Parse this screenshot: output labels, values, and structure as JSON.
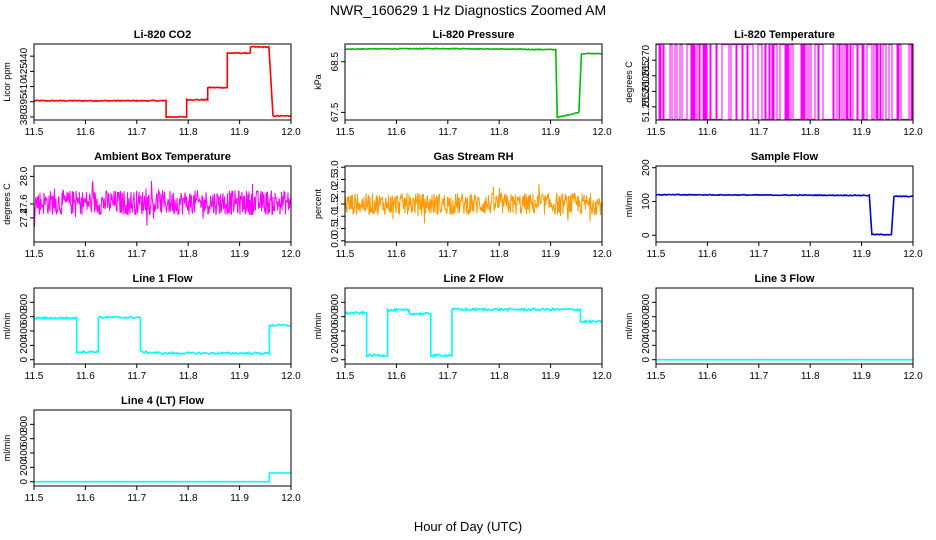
{
  "figure": {
    "title": "NWR_160629  1 Hz Diagnostics Zoomed AM",
    "xlabel": "Hour of Day (UTC)"
  },
  "chart_data": [
    {
      "id": "co2",
      "type": "line",
      "title": "Li-820 CO2",
      "ylabel": "Licor ppm",
      "color": "#ff0000",
      "xlim": [
        11.5,
        12.0
      ],
      "ylim": [
        377,
        452
      ],
      "xticks": [
        "11.5",
        "11.6",
        "11.7",
        "11.8",
        "11.9",
        "12.0"
      ],
      "yticks": [
        {
          "v": 380,
          "label": "380"
        },
        {
          "v": 395,
          "label": "395"
        },
        {
          "v": 410,
          "label": "410"
        },
        {
          "v": 425,
          "label": "425"
        },
        {
          "v": 440,
          "label": "440"
        }
      ],
      "series": [
        {
          "noise": 0.5,
          "points": [
            [
              11.5,
              396
            ],
            [
              11.757,
              396
            ],
            [
              11.757,
              380
            ],
            [
              11.797,
              380
            ],
            [
              11.797,
              397
            ],
            [
              11.838,
              397
            ],
            [
              11.838,
              409
            ],
            [
              11.876,
              409
            ],
            [
              11.876,
              443
            ],
            [
              11.921,
              443
            ],
            [
              11.921,
              449
            ],
            [
              11.957,
              449
            ],
            [
              11.965,
              381
            ],
            [
              12.0,
              381
            ]
          ]
        }
      ]
    },
    {
      "id": "pressure",
      "type": "line",
      "title": "Li-820 Pressure",
      "ylabel": "kPa",
      "color": "#00bb00",
      "xlim": [
        11.5,
        12.0
      ],
      "ylim": [
        67.35,
        68.85
      ],
      "xticks": [
        "11.5",
        "11.6",
        "11.7",
        "11.8",
        "11.9",
        "12.0"
      ],
      "yticks": [
        {
          "v": 67.5,
          "label": "67.5"
        },
        {
          "v": 68.5,
          "label": "68.5"
        }
      ],
      "series": [
        {
          "noise": 0.008,
          "points": [
            [
              11.5,
              68.75
            ],
            [
              11.7,
              68.76
            ],
            [
              11.9,
              68.74
            ],
            [
              11.91,
              68.74
            ],
            [
              11.913,
              67.4
            ],
            [
              11.955,
              67.5
            ],
            [
              11.96,
              68.66
            ],
            [
              12.0,
              68.66
            ]
          ]
        }
      ]
    },
    {
      "id": "licor_temp",
      "type": "line",
      "title": "Li-820 Temperature",
      "ylabel": "degrees C",
      "color": "#ff00ff",
      "xlim": [
        11.5,
        12.0
      ],
      "ylim": [
        51.2508,
        51.2752
      ],
      "xticks": [
        "11.5",
        "11.6",
        "11.7",
        "11.8",
        "11.9",
        "12.0"
      ],
      "yticks": [
        {
          "v": 51.255,
          "label": "51.255"
        },
        {
          "v": 51.26,
          "label": "51.260"
        },
        {
          "v": 51.265,
          "label": "51.265"
        },
        {
          "v": 51.27,
          "label": "51.270"
        }
      ],
      "series": [
        {
          "mode": "binary",
          "low": 51.251,
          "high": 51.275
        }
      ]
    },
    {
      "id": "box_temp",
      "type": "line",
      "title": "Ambient Box Temperature",
      "ylabel": "degrees C",
      "color": "#ff00ff",
      "xlim": [
        11.5,
        12.0
      ],
      "ylim": [
        27.05,
        28.15
      ],
      "xticks": [
        "11.5",
        "11.6",
        "11.7",
        "11.8",
        "11.9",
        "12.0"
      ],
      "yticks": [
        {
          "v": 27.4,
          "label": "27.4"
        },
        {
          "v": 27.6,
          "label": "27.6"
        },
        {
          "v": 28.0,
          "label": "28.0"
        }
      ],
      "series": [
        {
          "mode": "noise",
          "mean": 27.62,
          "amp": 0.18,
          "points": []
        }
      ]
    },
    {
      "id": "rh",
      "type": "line",
      "title": "Gas Stream RH",
      "ylabel": "percent",
      "color": "#ff9900",
      "xlim": [
        11.5,
        12.0
      ],
      "ylim": [
        -0.05,
        3.05
      ],
      "xticks": [
        "11.5",
        "11.6",
        "11.7",
        "11.8",
        "11.9",
        "12.0"
      ],
      "yticks": [
        {
          "v": 0,
          "label": "0.0"
        },
        {
          "v": 0.5,
          "label": "0.5"
        },
        {
          "v": 1,
          "label": "1.0"
        },
        {
          "v": 1.5,
          "label": "1.5"
        },
        {
          "v": 2,
          "label": "2.0"
        },
        {
          "v": 2.5,
          "label": "2.5"
        },
        {
          "v": 3,
          "label": "3.0"
        }
      ],
      "series": [
        {
          "mode": "noise",
          "mean": 1.5,
          "amp": 0.45,
          "points": []
        }
      ]
    },
    {
      "id": "sample_flow",
      "type": "line",
      "title": "Sample Flow",
      "ylabel": "ml/min",
      "color": "#0000cc",
      "xlim": [
        11.5,
        12.0
      ],
      "ylim": [
        -20,
        205
      ],
      "xticks": [
        "11.5",
        "11.6",
        "11.7",
        "11.8",
        "11.9",
        "12.0"
      ],
      "yticks": [
        {
          "v": 0,
          "label": "0"
        },
        {
          "v": 100,
          "label": "100"
        },
        {
          "v": 200,
          "label": "200"
        }
      ],
      "series": [
        {
          "noise": 1.2,
          "points": [
            [
              11.5,
              120
            ],
            [
              11.915,
              118
            ],
            [
              11.92,
              2
            ],
            [
              11.958,
              2
            ],
            [
              11.963,
              115
            ],
            [
              12.0,
              115
            ]
          ]
        }
      ]
    },
    {
      "id": "line1",
      "type": "line",
      "title": "Line 1 Flow",
      "ylabel": "ml/min",
      "color": "#00ffff",
      "xlim": [
        11.5,
        12.0
      ],
      "ylim": [
        -60,
        1000
      ],
      "xticks": [
        "11.5",
        "11.6",
        "11.7",
        "11.8",
        "11.9",
        "12.0"
      ],
      "yticks": [
        {
          "v": 0,
          "label": "0"
        },
        {
          "v": 200,
          "label": "200"
        },
        {
          "v": 400,
          "label": "400"
        },
        {
          "v": 600,
          "label": "600"
        },
        {
          "v": 800,
          "label": "800"
        }
      ],
      "series": [
        {
          "noise": 14,
          "points": [
            [
              11.5,
              580
            ],
            [
              11.583,
              580
            ],
            [
              11.583,
              110
            ],
            [
              11.625,
              110
            ],
            [
              11.625,
              590
            ],
            [
              11.707,
              590
            ],
            [
              11.707,
              110
            ],
            [
              11.75,
              90
            ],
            [
              11.958,
              90
            ],
            [
              11.958,
              480
            ],
            [
              12.0,
              480
            ]
          ]
        }
      ]
    },
    {
      "id": "line2",
      "type": "line",
      "title": "Line 2 Flow",
      "ylabel": "ml/min",
      "color": "#00ffff",
      "xlim": [
        11.5,
        12.0
      ],
      "ylim": [
        -60,
        1000
      ],
      "xticks": [
        "11.5",
        "11.6",
        "11.7",
        "11.8",
        "11.9",
        "12.0"
      ],
      "yticks": [
        {
          "v": 0,
          "label": "0"
        },
        {
          "v": 200,
          "label": "200"
        },
        {
          "v": 400,
          "label": "400"
        },
        {
          "v": 600,
          "label": "600"
        },
        {
          "v": 800,
          "label": "800"
        }
      ],
      "series": [
        {
          "noise": 16,
          "points": [
            [
              11.5,
              650
            ],
            [
              11.542,
              650
            ],
            [
              11.542,
              60
            ],
            [
              11.583,
              60
            ],
            [
              11.583,
              690
            ],
            [
              11.625,
              690
            ],
            [
              11.625,
              640
            ],
            [
              11.667,
              640
            ],
            [
              11.667,
              60
            ],
            [
              11.708,
              60
            ],
            [
              11.708,
              700
            ],
            [
              11.958,
              700
            ],
            [
              11.958,
              530
            ],
            [
              12.0,
              530
            ]
          ]
        }
      ]
    },
    {
      "id": "line3",
      "type": "line",
      "title": "Line 3 Flow",
      "ylabel": "ml/min",
      "color": "#00ffff",
      "xlim": [
        11.5,
        12.0
      ],
      "ylim": [
        -60,
        1000
      ],
      "xticks": [
        "11.5",
        "11.6",
        "11.7",
        "11.8",
        "11.9",
        "12.0"
      ],
      "yticks": [
        {
          "v": 0,
          "label": "0"
        },
        {
          "v": 200,
          "label": "200"
        },
        {
          "v": 400,
          "label": "400"
        },
        {
          "v": 600,
          "label": "600"
        },
        {
          "v": 800,
          "label": "800"
        }
      ],
      "series": [
        {
          "noise": 0,
          "points": [
            [
              11.5,
              0
            ],
            [
              12.0,
              0
            ]
          ]
        }
      ]
    },
    {
      "id": "line4",
      "type": "line",
      "title": "Line 4 (LT) Flow",
      "ylabel": "ml/min",
      "color": "#00ffff",
      "xlim": [
        11.5,
        12.0
      ],
      "ylim": [
        -60,
        1000
      ],
      "xticks": [
        "11.5",
        "11.6",
        "11.7",
        "11.8",
        "11.9",
        "12.0"
      ],
      "yticks": [
        {
          "v": 0,
          "label": "0"
        },
        {
          "v": 200,
          "label": "200"
        },
        {
          "v": 400,
          "label": "400"
        },
        {
          "v": 600,
          "label": "600"
        },
        {
          "v": 800,
          "label": "800"
        }
      ],
      "series": [
        {
          "noise": 0,
          "points": [
            [
              11.5,
              0
            ],
            [
              11.958,
              0
            ],
            [
              11.958,
              120
            ],
            [
              12.0,
              120
            ]
          ]
        }
      ]
    }
  ]
}
